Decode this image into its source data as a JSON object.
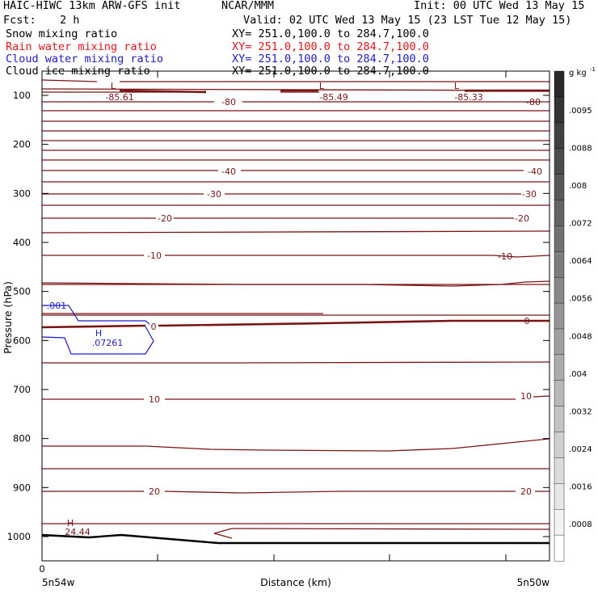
{
  "header": {
    "model": "HAIC-HIWC 13km ARW-GFS init",
    "center": "NCAR/MMM",
    "init": "Init: 00 UTC Wed 13 May 15",
    "fcst_label": "Fcst:",
    "fcst_value": "2 h",
    "valid": "Valid: 02 UTC Wed 13 May 15 (23 LST Tue 12 May 15)"
  },
  "fields": [
    {
      "name": "Snow mixing ratio",
      "xy": "XY= 251.0,100.0 to 284.7,100.0",
      "color": "#000000"
    },
    {
      "name": "Rain water mixing ratio",
      "xy": "XY= 251.0,100.0 to 284.7,100.0",
      "color": "#e8141e"
    },
    {
      "name": "Cloud water mixing ratio",
      "xy": "XY= 251.0,100.0 to 284.7,100.0",
      "color": "#1c1ccc"
    },
    {
      "name": "Cloud ice mixing ratio",
      "xy": "XY= 251.0,100.0 to 284.7,100.0",
      "color": "#000000"
    }
  ],
  "chart_data": {
    "type": "contour-cross-section",
    "ylabel": "Pressure (hPa)",
    "xlabel": "Distance (km)",
    "x_tick_labels": [
      "0"
    ],
    "x_end_labels": [
      "5n54w",
      "5n50w"
    ],
    "y_ticks": [
      100,
      200,
      300,
      400,
      500,
      600,
      700,
      800,
      900,
      1000
    ],
    "ylim": [
      1050,
      50
    ],
    "contour_labels": {
      "temperature": [
        "-85.61",
        "-85.49",
        "-85.33",
        "-80",
        "-40",
        "-30",
        "-20",
        "-10",
        "0",
        "10",
        "20",
        "24.44"
      ],
      "cloud_water": [
        ".001",
        ".07261"
      ],
      "extrema": [
        "L",
        "L",
        "L",
        "H",
        "H"
      ]
    },
    "colorbar": {
      "unit": "g kg",
      "unit_exp": "-1",
      "labels": [
        ".0095",
        ".0088",
        ".008",
        ".0072",
        ".0064",
        ".0056",
        ".0048",
        ".004",
        ".0032",
        ".0024",
        ".0016",
        ".0008"
      ]
    }
  }
}
